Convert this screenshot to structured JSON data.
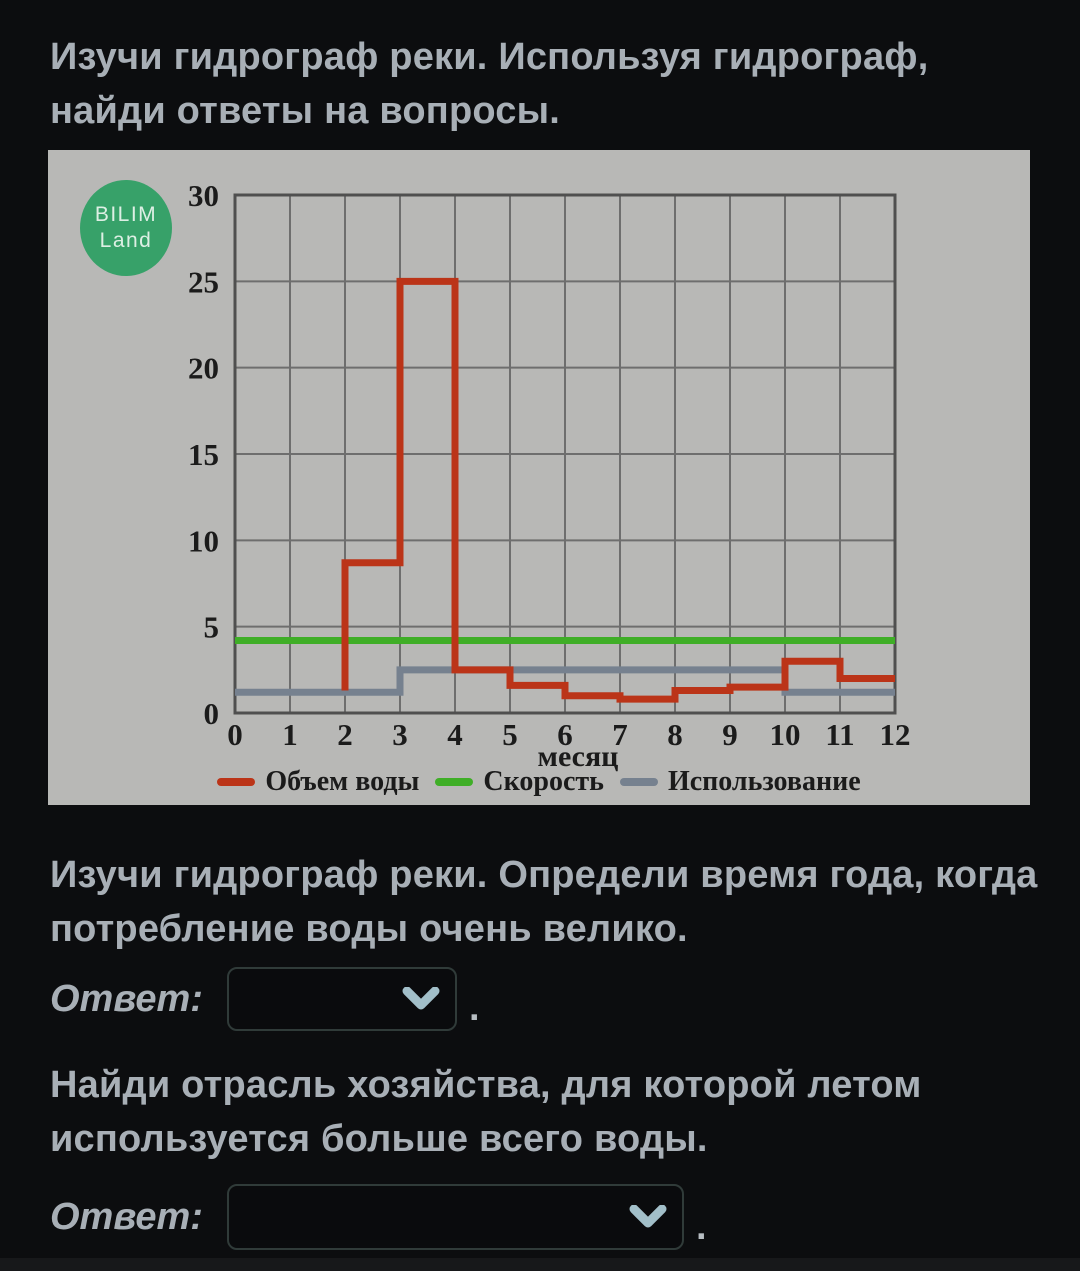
{
  "page": {
    "bg_color": "#0c0d0f",
    "text_color": "#a8afb6"
  },
  "intro": "Изучи гидрограф реки. Используя гидрограф, найди ответы на вопросы.",
  "logo": {
    "line1": "BILIM",
    "line2": "Land",
    "bg_color": "#37a169"
  },
  "questions": [
    {
      "text": "Изучи гидрограф реки. Определи время года, когда потребление воды очень велико.",
      "answer_label": "Ответ:",
      "selected_value": "",
      "suffix": "."
    },
    {
      "text": "Найди отрасль хозяйства, для которой летом используется больше всего воды.",
      "answer_label": "Ответ:",
      "selected_value": "",
      "suffix": "."
    }
  ],
  "chart_data": {
    "type": "line",
    "subtype": "step",
    "title": "",
    "xlabel": "месяц",
    "ylabel": "",
    "xlim": [
      0,
      12
    ],
    "ylim": [
      0,
      30
    ],
    "x_ticks": [
      0,
      1,
      2,
      3,
      4,
      5,
      6,
      7,
      8,
      9,
      10,
      11,
      12
    ],
    "y_ticks": [
      0,
      5,
      10,
      15,
      20,
      25,
      30
    ],
    "grid": true,
    "legend_position": "bottom",
    "panel_bg": "#b8b8b6",
    "grid_color": "#6e6e6e",
    "border_color": "#4f4f4f",
    "tick_color": "#1b1b1b",
    "series": [
      {
        "name": "Объем воды",
        "color": "#bb3418",
        "points": [
          [
            2,
            1.3
          ],
          [
            2,
            8.7
          ],
          [
            3,
            8.7
          ],
          [
            3,
            25
          ],
          [
            4,
            25
          ],
          [
            4,
            2.5
          ],
          [
            5,
            2.5
          ],
          [
            5,
            1.6
          ],
          [
            6,
            1.6
          ],
          [
            6,
            1.0
          ],
          [
            7,
            1.0
          ],
          [
            7,
            0.8
          ],
          [
            8,
            0.8
          ],
          [
            8,
            1.3
          ],
          [
            9,
            1.3
          ],
          [
            9,
            1.5
          ],
          [
            10,
            1.5
          ],
          [
            10,
            3.0
          ],
          [
            11,
            3.0
          ],
          [
            11,
            2.0
          ],
          [
            12,
            2.0
          ]
        ]
      },
      {
        "name": "Скорость",
        "color": "#3fae27",
        "points": [
          [
            0,
            4.2
          ],
          [
            12,
            4.2
          ]
        ]
      },
      {
        "name": "Использование",
        "color": "#76818f",
        "points": [
          [
            0,
            1.2
          ],
          [
            3,
            1.2
          ],
          [
            3,
            2.5
          ],
          [
            10,
            2.5
          ],
          [
            10,
            1.2
          ],
          [
            12,
            1.2
          ]
        ]
      }
    ]
  }
}
